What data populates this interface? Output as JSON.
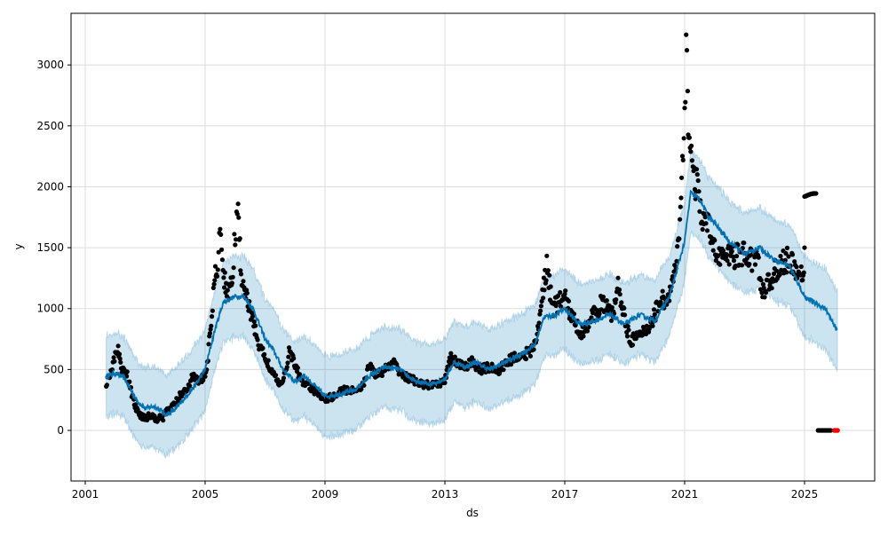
{
  "chart_data": {
    "type": "line",
    "title": "",
    "xlabel": "ds",
    "ylabel": "y",
    "xlim": [
      2000.5,
      2027.3
    ],
    "ylim": [
      -410,
      3400
    ],
    "grid": true,
    "legend": "none",
    "x_ticks": [
      "2001",
      "2005",
      "2009",
      "2013",
      "2017",
      "2021",
      "2025"
    ],
    "y_ticks": [
      "0",
      "500",
      "1000",
      "1500",
      "2000",
      "2500",
      "3000"
    ],
    "colors": {
      "forecast": "#0072b2",
      "interval": "#0072b2",
      "observed": "#000000",
      "highlight": "#ff0000",
      "grid": "#dddddd"
    },
    "forecast_interval_halfwidth": 330,
    "forecast": [
      [
        2001.7,
        440
      ],
      [
        2002.0,
        470
      ],
      [
        2002.3,
        430
      ],
      [
        2002.7,
        250
      ],
      [
        2003.0,
        180
      ],
      [
        2003.3,
        200
      ],
      [
        2003.7,
        130
      ],
      [
        2004.0,
        170
      ],
      [
        2004.3,
        260
      ],
      [
        2004.7,
        380
      ],
      [
        2005.0,
        500
      ],
      [
        2005.3,
        800
      ],
      [
        2005.6,
        1050
      ],
      [
        2006.0,
        1100
      ],
      [
        2006.3,
        1100
      ],
      [
        2006.6,
        1000
      ],
      [
        2007.0,
        750
      ],
      [
        2007.3,
        650
      ],
      [
        2007.6,
        500
      ],
      [
        2008.0,
        400
      ],
      [
        2008.3,
        450
      ],
      [
        2008.6,
        380
      ],
      [
        2009.0,
        280
      ],
      [
        2009.5,
        300
      ],
      [
        2010.0,
        330
      ],
      [
        2010.5,
        450
      ],
      [
        2011.0,
        520
      ],
      [
        2011.5,
        500
      ],
      [
        2012.0,
        400
      ],
      [
        2012.5,
        380
      ],
      [
        2013.0,
        420
      ],
      [
        2013.3,
        560
      ],
      [
        2013.7,
        520
      ],
      [
        2014.0,
        560
      ],
      [
        2014.5,
        500
      ],
      [
        2015.0,
        560
      ],
      [
        2015.5,
        620
      ],
      [
        2016.0,
        700
      ],
      [
        2016.3,
        930
      ],
      [
        2016.7,
        950
      ],
      [
        2017.0,
        1000
      ],
      [
        2017.5,
        870
      ],
      [
        2018.0,
        900
      ],
      [
        2018.5,
        950
      ],
      [
        2019.0,
        870
      ],
      [
        2019.5,
        950
      ],
      [
        2020.0,
        900
      ],
      [
        2020.5,
        1100
      ],
      [
        2021.0,
        1550
      ],
      [
        2021.2,
        1950
      ],
      [
        2021.5,
        1900
      ],
      [
        2021.8,
        1750
      ],
      [
        2022.0,
        1700
      ],
      [
        2022.5,
        1550
      ],
      [
        2023.0,
        1450
      ],
      [
        2023.5,
        1500
      ],
      [
        2024.0,
        1400
      ],
      [
        2024.5,
        1350
      ],
      [
        2025.0,
        1100
      ],
      [
        2025.3,
        1050
      ],
      [
        2025.7,
        1000
      ],
      [
        2026.0,
        850
      ],
      [
        2026.1,
        830
      ]
    ],
    "observed": [
      [
        2001.7,
        380
      ],
      [
        2001.9,
        520
      ],
      [
        2002.0,
        600
      ],
      [
        2002.1,
        680
      ],
      [
        2002.2,
        520
      ],
      [
        2002.3,
        480
      ],
      [
        2002.4,
        450
      ],
      [
        2002.5,
        350
      ],
      [
        2002.6,
        250
      ],
      [
        2002.7,
        180
      ],
      [
        2002.8,
        130
      ],
      [
        2002.9,
        120
      ],
      [
        2003.0,
        110
      ],
      [
        2003.2,
        120
      ],
      [
        2003.4,
        100
      ],
      [
        2003.6,
        110
      ],
      [
        2003.8,
        180
      ],
      [
        2004.0,
        220
      ],
      [
        2004.2,
        300
      ],
      [
        2004.4,
        350
      ],
      [
        2004.6,
        450
      ],
      [
        2004.8,
        400
      ],
      [
        2005.0,
        450
      ],
      [
        2005.1,
        600
      ],
      [
        2005.2,
        900
      ],
      [
        2005.3,
        1200
      ],
      [
        2005.4,
        1350
      ],
      [
        2005.5,
        1600
      ],
      [
        2005.6,
        1300
      ],
      [
        2005.7,
        1200
      ],
      [
        2005.8,
        1100
      ],
      [
        2005.9,
        1250
      ],
      [
        2006.0,
        1600
      ],
      [
        2006.1,
        1750
      ],
      [
        2006.2,
        1300
      ],
      [
        2006.3,
        1200
      ],
      [
        2006.4,
        1100
      ],
      [
        2006.5,
        950
      ],
      [
        2006.6,
        900
      ],
      [
        2006.7,
        800
      ],
      [
        2006.8,
        700
      ],
      [
        2006.9,
        650
      ],
      [
        2007.0,
        600
      ],
      [
        2007.2,
        500
      ],
      [
        2007.4,
        400
      ],
      [
        2007.6,
        380
      ],
      [
        2007.8,
        650
      ],
      [
        2008.0,
        550
      ],
      [
        2008.2,
        400
      ],
      [
        2008.4,
        380
      ],
      [
        2008.6,
        330
      ],
      [
        2008.8,
        300
      ],
      [
        2009.0,
        260
      ],
      [
        2009.3,
        280
      ],
      [
        2009.6,
        330
      ],
      [
        2010.0,
        330
      ],
      [
        2010.3,
        380
      ],
      [
        2010.5,
        550
      ],
      [
        2010.7,
        450
      ],
      [
        2011.0,
        500
      ],
      [
        2011.3,
        550
      ],
      [
        2011.6,
        450
      ],
      [
        2011.9,
        420
      ],
      [
        2012.2,
        380
      ],
      [
        2012.5,
        370
      ],
      [
        2012.8,
        370
      ],
      [
        2013.0,
        420
      ],
      [
        2013.2,
        600
      ],
      [
        2013.4,
        550
      ],
      [
        2013.6,
        520
      ],
      [
        2013.9,
        560
      ],
      [
        2014.2,
        500
      ],
      [
        2014.5,
        520
      ],
      [
        2014.8,
        480
      ],
      [
        2015.0,
        550
      ],
      [
        2015.3,
        600
      ],
      [
        2015.6,
        620
      ],
      [
        2015.9,
        650
      ],
      [
        2016.1,
        800
      ],
      [
        2016.3,
        1200
      ],
      [
        2016.4,
        1350
      ],
      [
        2016.6,
        1000
      ],
      [
        2016.8,
        1050
      ],
      [
        2017.0,
        1100
      ],
      [
        2017.2,
        950
      ],
      [
        2017.4,
        850
      ],
      [
        2017.6,
        800
      ],
      [
        2017.8,
        900
      ],
      [
        2018.0,
        950
      ],
      [
        2018.2,
        1050
      ],
      [
        2018.4,
        1000
      ],
      [
        2018.6,
        950
      ],
      [
        2018.8,
        1200
      ],
      [
        2019.0,
        900
      ],
      [
        2019.2,
        750
      ],
      [
        2019.4,
        750
      ],
      [
        2019.6,
        800
      ],
      [
        2019.8,
        850
      ],
      [
        2020.0,
        950
      ],
      [
        2020.2,
        1100
      ],
      [
        2020.4,
        1050
      ],
      [
        2020.6,
        1200
      ],
      [
        2020.8,
        1500
      ],
      [
        2020.9,
        2000
      ],
      [
        2021.0,
        2500
      ],
      [
        2021.05,
        3200
      ],
      [
        2021.1,
        2700
      ],
      [
        2021.2,
        2300
      ],
      [
        2021.3,
        2100
      ],
      [
        2021.4,
        2000
      ],
      [
        2021.5,
        1850
      ],
      [
        2021.6,
        1750
      ],
      [
        2021.8,
        1650
      ],
      [
        2022.0,
        1500
      ],
      [
        2022.2,
        1450
      ],
      [
        2022.4,
        1400
      ],
      [
        2022.6,
        1450
      ],
      [
        2022.8,
        1420
      ],
      [
        2023.0,
        1450
      ],
      [
        2023.2,
        1400
      ],
      [
        2023.4,
        1430
      ],
      [
        2023.6,
        1150
      ],
      [
        2023.8,
        1200
      ],
      [
        2024.0,
        1300
      ],
      [
        2024.2,
        1350
      ],
      [
        2024.4,
        1400
      ],
      [
        2024.6,
        1350
      ],
      [
        2024.8,
        1300
      ],
      [
        2025.0,
        1200
      ]
    ],
    "observed_extra": [
      [
        2025.0,
        1920
      ],
      [
        2025.1,
        1930
      ],
      [
        2025.2,
        1940
      ],
      [
        2025.3,
        1945
      ],
      [
        2025.4,
        1945
      ],
      [
        2025.45,
        0
      ],
      [
        2025.6,
        0
      ],
      [
        2025.75,
        0
      ],
      [
        2025.9,
        0
      ]
    ],
    "highlighted": [
      [
        2026.0,
        0
      ],
      [
        2026.05,
        0
      ],
      [
        2026.1,
        0
      ]
    ]
  }
}
